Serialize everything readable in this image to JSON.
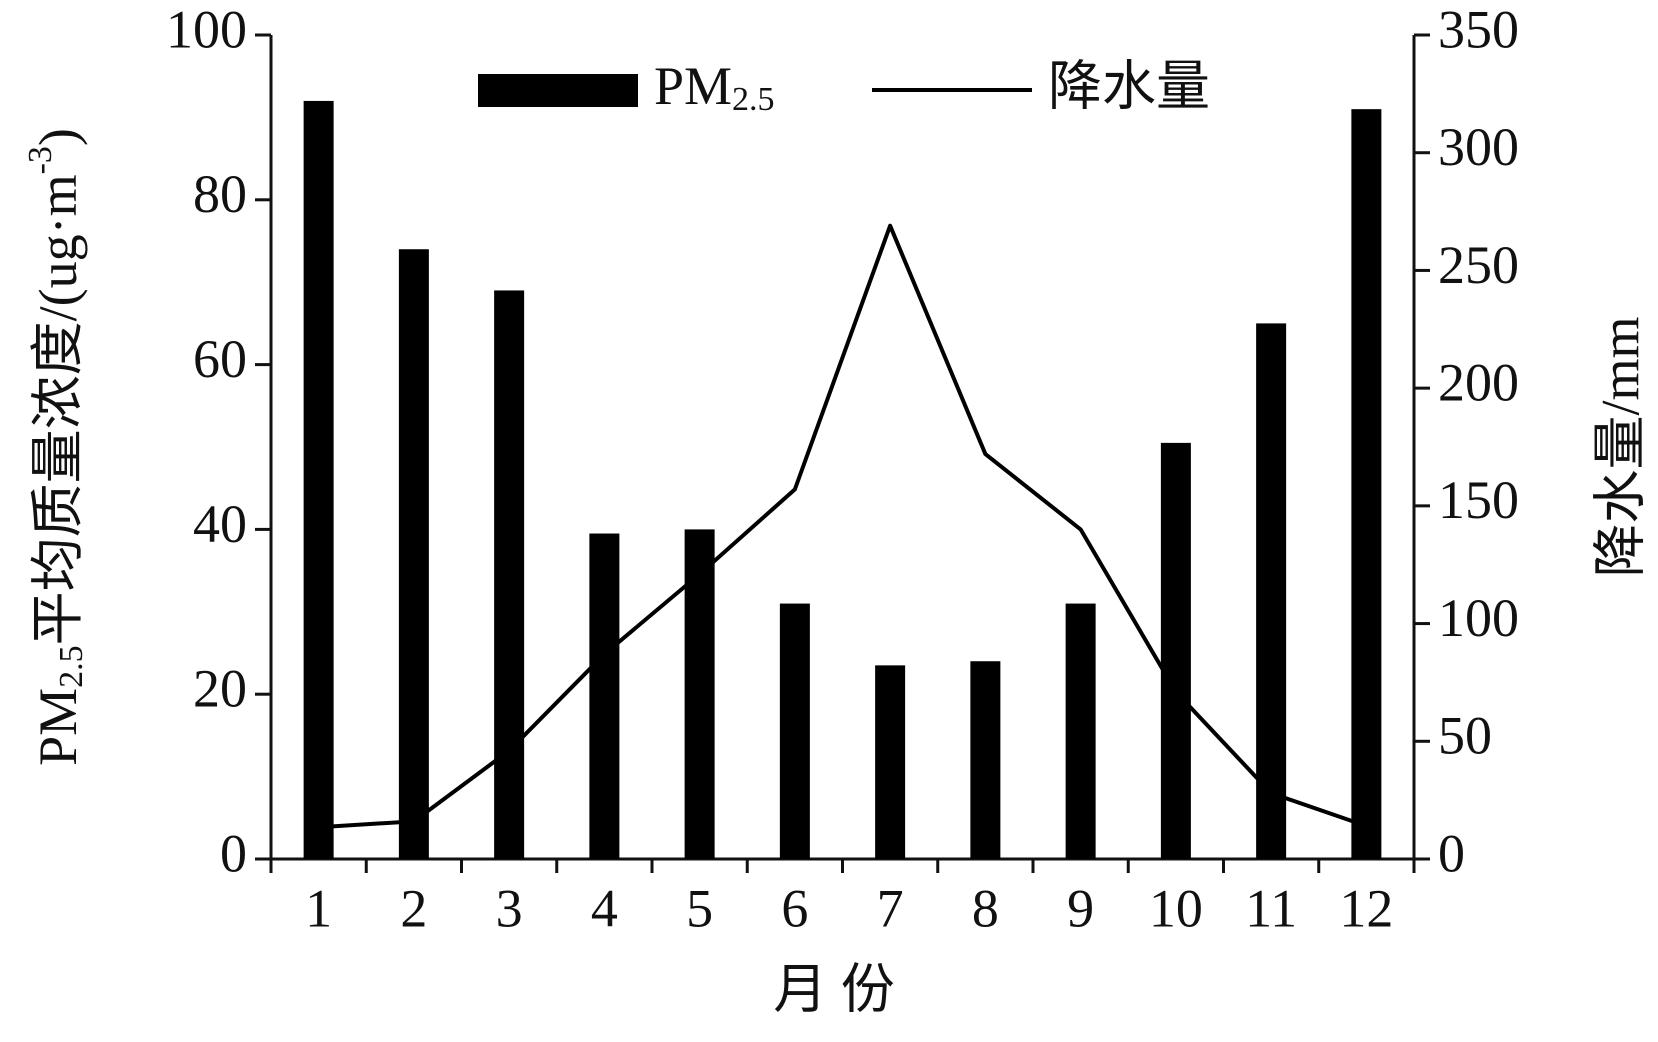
{
  "chart_data": {
    "type": "bar_line",
    "x_label": "月  份",
    "y_label": "PM2.5平均质量浓度/(ug·m-3)",
    "y2_label": "降水量/mm",
    "categories": [
      "1",
      "2",
      "3",
      "4",
      "5",
      "6",
      "7",
      "8",
      "9",
      "10",
      "11",
      "12"
    ],
    "series": [
      {
        "name": "PM2.5",
        "type": "bar",
        "color": "#000000",
        "values": [
          92,
          74,
          69,
          39.5,
          40,
          31,
          23.5,
          24,
          31,
          50.5,
          65,
          91
        ]
      },
      {
        "name": "降水量",
        "type": "line",
        "axis": "y2",
        "color": "#000000",
        "values": [
          13.5,
          16,
          46,
          87,
          121,
          157,
          269,
          172,
          140,
          71,
          28,
          14
        ]
      }
    ],
    "ylim": [
      0,
      100
    ],
    "yticks": [
      0,
      20,
      40,
      60,
      80,
      100
    ],
    "y2lim": [
      0,
      350
    ],
    "y2ticks": [
      0,
      50,
      100,
      150,
      200,
      250,
      300,
      350
    ],
    "legend": "top"
  }
}
